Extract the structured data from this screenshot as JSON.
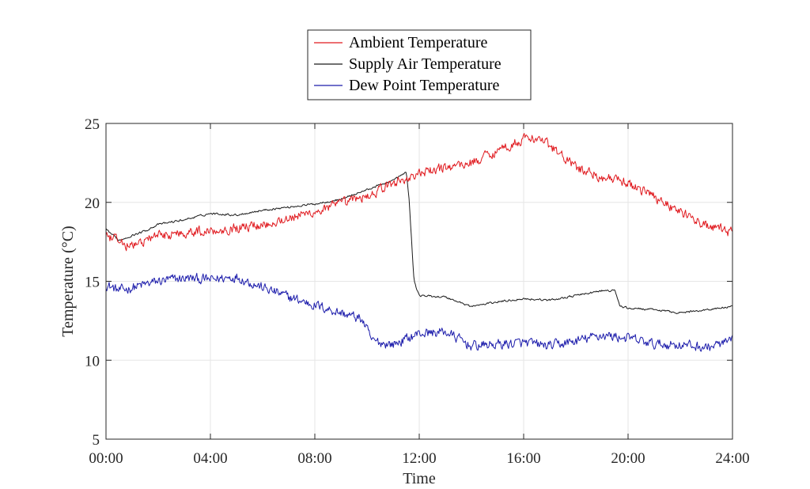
{
  "chart_data": {
    "type": "line",
    "title": "",
    "xlabel": "Time",
    "ylabel": "Temperature (°C)",
    "xlim": [
      0,
      24
    ],
    "ylim": [
      5,
      25
    ],
    "x_tick_labels": [
      "00:00",
      "04:00",
      "08:00",
      "12:00",
      "16:00",
      "20:00",
      "24:00"
    ],
    "y_tick_labels": [
      "5",
      "10",
      "15",
      "20",
      "25"
    ],
    "grid": true,
    "legend_position": "top-center",
    "x_unit": "hours",
    "series": [
      {
        "name": "Ambient Temperature",
        "color": "#e0191e",
        "noise": 0.5,
        "x": [
          0,
          0.5,
          1,
          1.5,
          2,
          3,
          4,
          5,
          6,
          7,
          8,
          9,
          10,
          11,
          11.5,
          12,
          13,
          14,
          15,
          16,
          16.5,
          17,
          18,
          19,
          20,
          21,
          22,
          23,
          24
        ],
        "values": [
          17.8,
          17.5,
          17.2,
          17.6,
          17.9,
          18.1,
          18.2,
          18.4,
          18.6,
          19.0,
          19.4,
          19.9,
          20.4,
          21.2,
          21.5,
          21.8,
          22.2,
          22.5,
          23.3,
          24.0,
          24.1,
          23.6,
          22.2,
          21.6,
          21.2,
          20.4,
          19.4,
          18.5,
          18.1
        ]
      },
      {
        "name": "Supply Air Temperature",
        "color": "#1a1a1a",
        "noise": 0.1,
        "x": [
          0,
          0.5,
          1,
          1.5,
          2,
          3,
          4,
          5,
          6,
          7,
          8,
          9,
          10,
          11,
          11.5,
          11.6,
          11.8,
          12,
          13,
          14,
          15,
          16,
          17,
          18,
          19,
          19.5,
          19.7,
          20,
          21,
          22,
          23,
          24
        ],
        "values": [
          18.3,
          17.6,
          17.9,
          18.2,
          18.6,
          18.9,
          19.3,
          19.2,
          19.5,
          19.7,
          19.9,
          20.2,
          20.8,
          21.4,
          21.9,
          20.5,
          15.0,
          14.1,
          14.0,
          13.4,
          13.7,
          13.9,
          13.8,
          14.1,
          14.4,
          14.4,
          13.4,
          13.3,
          13.2,
          13.0,
          13.2,
          13.4
        ]
      },
      {
        "name": "Dew Point Temperature",
        "color": "#1c1cab",
        "noise": 0.5,
        "x": [
          0,
          0.5,
          1,
          2,
          3,
          4,
          5,
          6,
          7,
          8,
          9,
          9.8,
          10.2,
          11,
          12,
          13,
          14,
          15,
          16,
          17,
          18,
          19,
          20,
          21,
          22,
          23,
          24
        ],
        "values": [
          14.8,
          14.4,
          14.6,
          15.0,
          15.2,
          15.1,
          15.3,
          14.6,
          14.0,
          13.5,
          13.0,
          12.6,
          11.2,
          11.0,
          11.7,
          11.8,
          10.9,
          11.0,
          11.1,
          10.9,
          11.2,
          11.6,
          11.4,
          11.0,
          11.0,
          10.8,
          11.2
        ]
      }
    ]
  }
}
